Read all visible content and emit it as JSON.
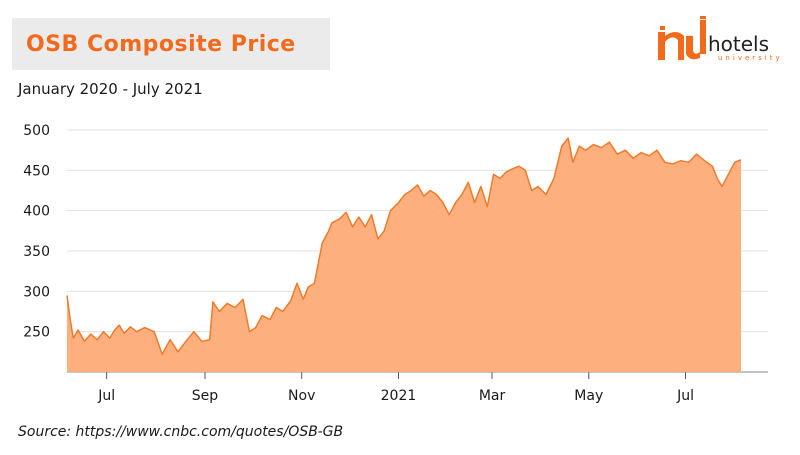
{
  "header": {
    "title": "OSB Composite Price",
    "subtitle": "January 2020 - July 2021"
  },
  "logo": {
    "word": "hotels",
    "sub": "university",
    "icon": "hotels-university-logo"
  },
  "footer": {
    "source": "Source: https://www.cnbc.com/quotes/OSB-GB"
  },
  "colors": {
    "accent": "#f26a1b",
    "area_fill": "#fdb07d",
    "line": "#f07a2a",
    "grid": "#e0e0e0"
  },
  "chart_data": {
    "type": "area",
    "title": "OSB Composite Price",
    "xlabel": "",
    "ylabel": "",
    "ylim": [
      200,
      500
    ],
    "xlim": [
      "2020-06-06",
      "2021-08-22"
    ],
    "grid": true,
    "y_ticks": [
      250,
      300,
      350,
      400,
      450,
      500
    ],
    "x_ticks": [
      {
        "label": "Jul",
        "date": "2020-07-01"
      },
      {
        "label": "Sep",
        "date": "2020-09-01"
      },
      {
        "label": "Nov",
        "date": "2020-11-01"
      },
      {
        "label": "2021",
        "date": "2021-01-01"
      },
      {
        "label": "Mar",
        "date": "2021-03-01"
      },
      {
        "label": "May",
        "date": "2021-05-01"
      },
      {
        "label": "Jul",
        "date": "2021-07-01"
      }
    ],
    "series": [
      {
        "x": [
          "2020-06-06",
          "2020-06-08",
          "2020-06-10",
          "2020-06-13",
          "2020-06-17",
          "2020-06-21",
          "2020-06-25",
          "2020-06-29",
          "2020-07-03",
          "2020-07-06",
          "2020-07-09",
          "2020-07-12",
          "2020-07-16",
          "2020-07-20",
          "2020-07-25",
          "2020-07-31",
          "2020-08-05",
          "2020-08-10",
          "2020-08-15",
          "2020-08-20",
          "2020-08-25",
          "2020-08-30",
          "2020-09-04",
          "2020-09-06",
          "2020-09-10",
          "2020-09-15",
          "2020-09-20",
          "2020-09-25",
          "2020-09-29",
          "2020-10-03",
          "2020-10-07",
          "2020-10-12",
          "2020-10-16",
          "2020-10-20",
          "2020-10-25",
          "2020-10-29",
          "2020-11-02",
          "2020-11-05",
          "2020-11-09",
          "2020-11-14",
          "2020-11-18",
          "2020-11-20",
          "2020-11-25",
          "2020-11-29",
          "2020-12-03",
          "2020-12-07",
          "2020-12-11",
          "2020-12-15",
          "2020-12-19",
          "2020-12-23",
          "2020-12-27",
          "2021-01-01",
          "2021-01-05",
          "2021-01-09",
          "2021-01-13",
          "2021-01-17",
          "2021-01-21",
          "2021-01-25",
          "2021-01-29",
          "2021-02-02",
          "2021-02-06",
          "2021-02-10",
          "2021-02-14",
          "2021-02-18",
          "2021-02-22",
          "2021-02-26",
          "2021-03-02",
          "2021-03-06",
          "2021-03-10",
          "2021-03-14",
          "2021-03-18",
          "2021-03-22",
          "2021-03-26",
          "2021-03-30",
          "2021-04-04",
          "2021-04-09",
          "2021-04-14",
          "2021-04-18",
          "2021-04-21",
          "2021-04-25",
          "2021-04-29",
          "2021-05-04",
          "2021-05-09",
          "2021-05-14",
          "2021-05-19",
          "2021-05-24",
          "2021-05-29",
          "2021-06-03",
          "2021-06-08",
          "2021-06-13",
          "2021-06-18",
          "2021-06-23",
          "2021-06-28",
          "2021-07-03",
          "2021-07-08",
          "2021-07-13",
          "2021-07-18",
          "2021-07-21",
          "2021-07-24",
          "2021-07-28",
          "2021-08-01",
          "2021-08-05"
        ],
        "y": [
          295,
          265,
          242,
          252,
          238,
          247,
          240,
          250,
          242,
          252,
          258,
          248,
          256,
          250,
          255,
          250,
          222,
          240,
          225,
          238,
          250,
          238,
          240,
          287,
          275,
          285,
          280,
          290,
          250,
          255,
          270,
          265,
          280,
          275,
          288,
          310,
          290,
          305,
          310,
          360,
          375,
          385,
          390,
          398,
          380,
          392,
          380,
          395,
          365,
          375,
          400,
          410,
          420,
          425,
          432,
          418,
          425,
          420,
          410,
          395,
          410,
          420,
          435,
          410,
          430,
          405,
          445,
          440,
          448,
          452,
          455,
          450,
          425,
          430,
          420,
          440,
          480,
          490,
          460,
          480,
          475,
          482,
          478,
          485,
          470,
          475,
          465,
          472,
          468,
          475,
          460,
          458,
          462,
          460,
          470,
          462,
          455,
          440,
          430,
          445,
          460,
          463
        ]
      }
    ]
  }
}
